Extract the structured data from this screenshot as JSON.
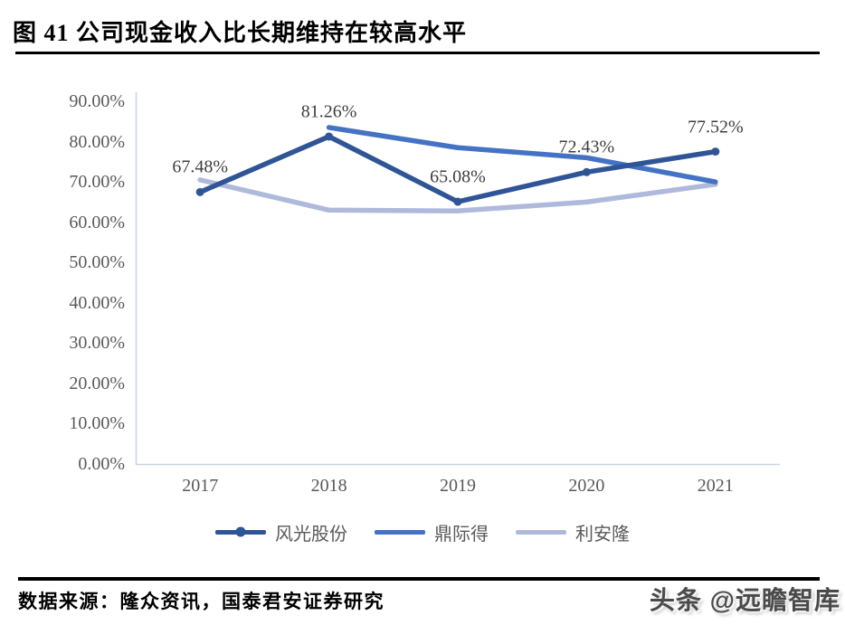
{
  "page": {
    "title": "图 41 公司现金收入比长期维持在较高水平",
    "source_text": "数据来源：隆众资讯，国泰君安证券研究",
    "watermark": "头条 @远瞻智库"
  },
  "chart_data": {
    "type": "line",
    "title": "图 41 公司现金收入比长期维持在较高水平",
    "categories": [
      "2017",
      "2018",
      "2019",
      "2020",
      "2021"
    ],
    "series": [
      {
        "name": "风光股份",
        "color": "#2F5597",
        "marker": true,
        "values": [
          67.48,
          81.26,
          65.08,
          72.43,
          77.52
        ],
        "point_labels": [
          "67.48%",
          "81.26%",
          "65.08%",
          "72.43%",
          "77.52%"
        ]
      },
      {
        "name": "鼎际得",
        "color": "#4472C4",
        "marker": false,
        "values": [
          null,
          83.5,
          78.5,
          76.0,
          70.0
        ]
      },
      {
        "name": "利安隆",
        "color": "#AEB9DC",
        "marker": false,
        "values": [
          70.5,
          63.0,
          62.8,
          65.0,
          69.4
        ]
      }
    ],
    "xlabel": "",
    "ylabel": "",
    "ylim": [
      0,
      90
    ],
    "yticks": [
      "0.00%",
      "10.00%",
      "20.00%",
      "30.00%",
      "40.00%",
      "50.00%",
      "60.00%",
      "70.00%",
      "80.00%",
      "90.00%"
    ],
    "grid": false,
    "legend_position": "bottom",
    "axis_color": "#cdd5e4"
  }
}
